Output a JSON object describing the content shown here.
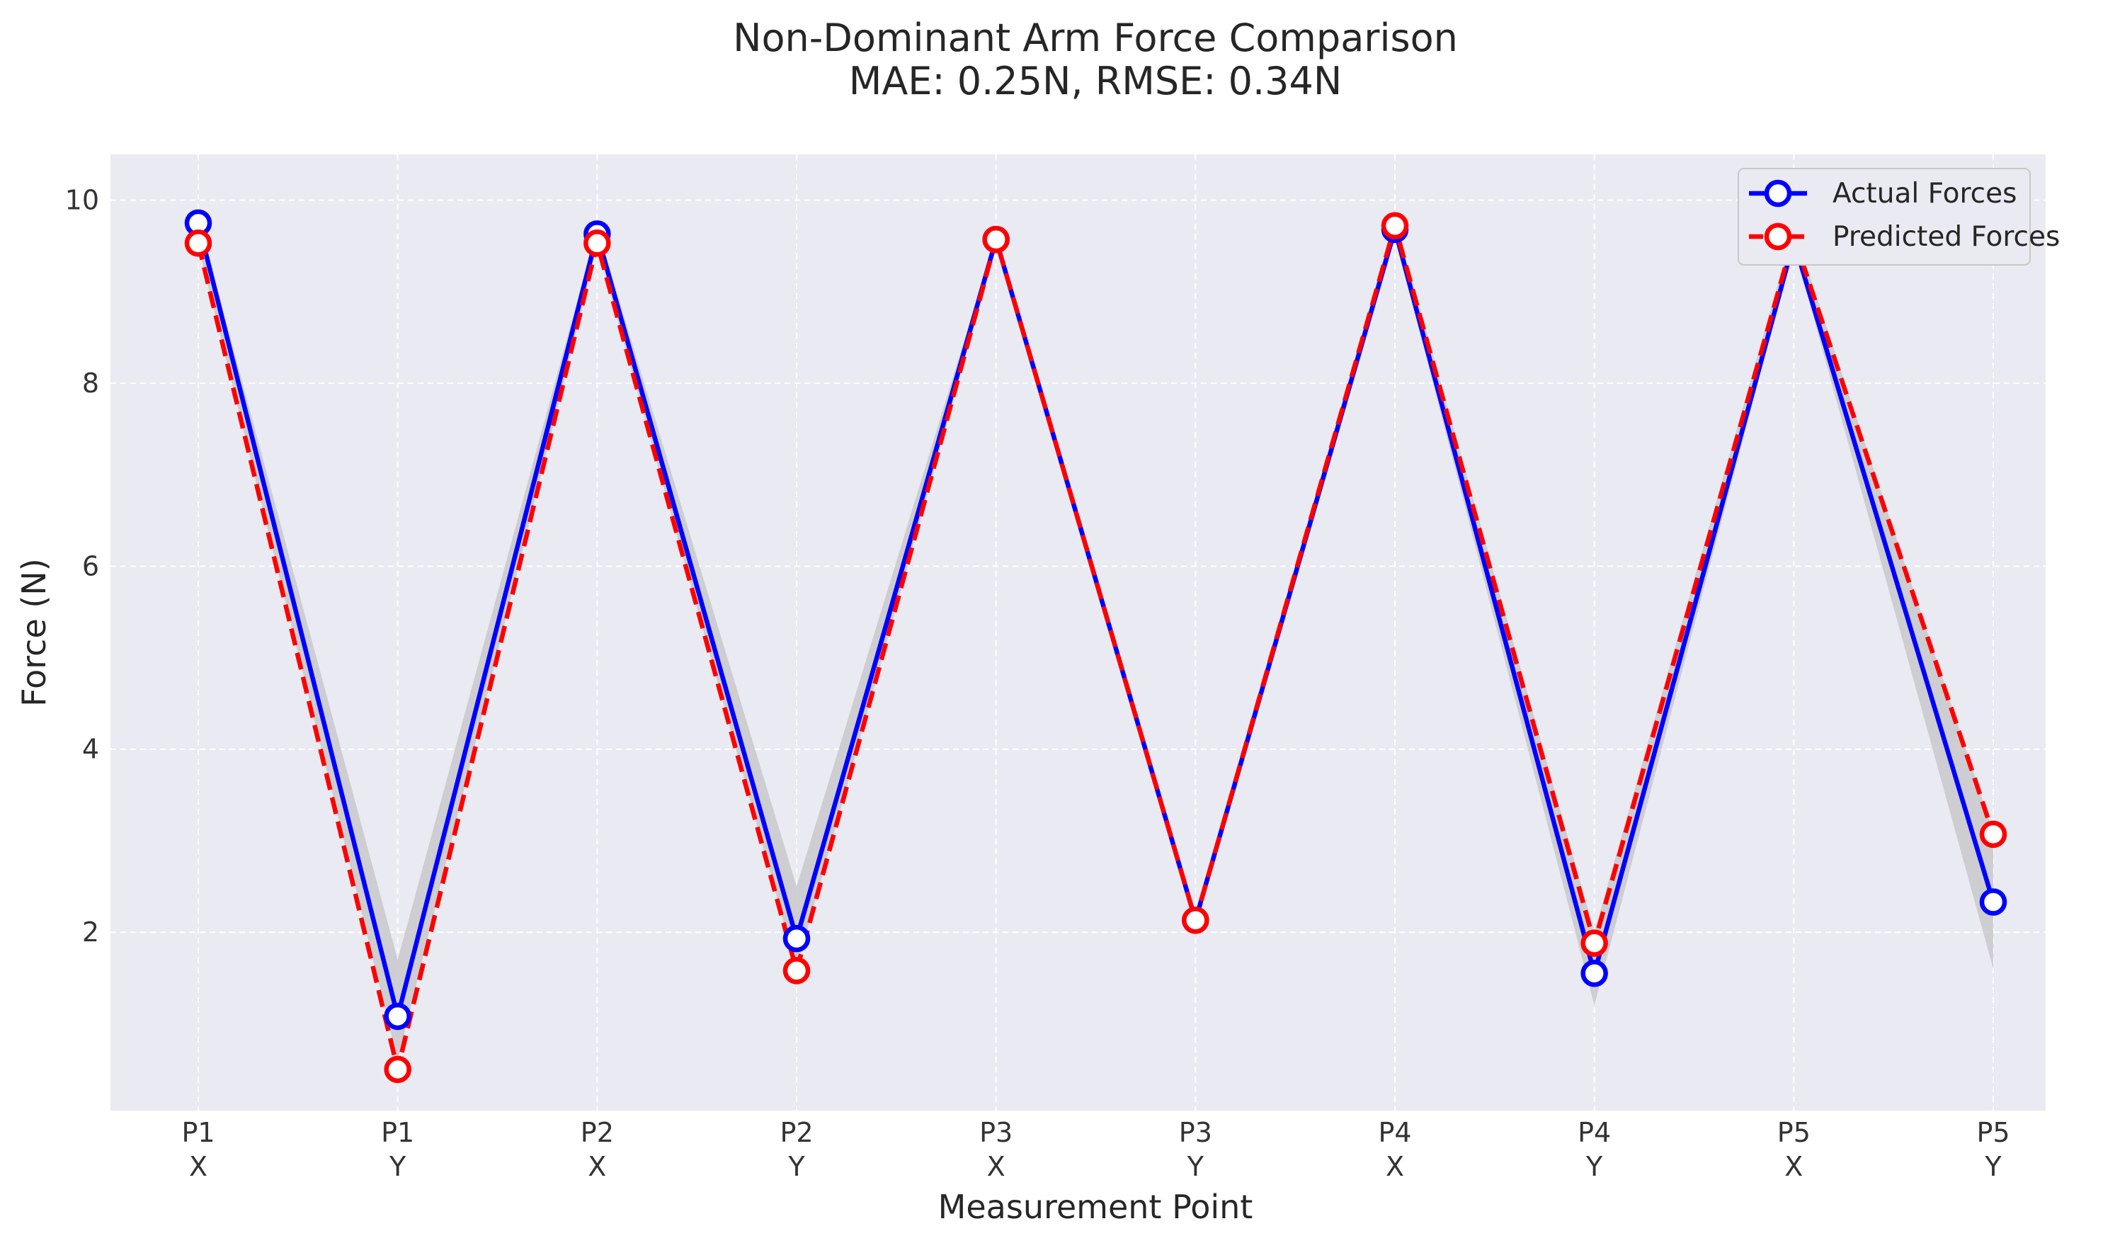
{
  "chart_data": {
    "type": "line",
    "title": "Non-Dominant Arm Force Comparison",
    "subtitle": "MAE: 0.25N, RMSE: 0.34N",
    "xlabel": "Measurement Point",
    "ylabel": "Force (N)",
    "categories": [
      {
        "point": "P1",
        "axis": "X"
      },
      {
        "point": "P1",
        "axis": "Y"
      },
      {
        "point": "P2",
        "axis": "X"
      },
      {
        "point": "P2",
        "axis": "Y"
      },
      {
        "point": "P3",
        "axis": "X"
      },
      {
        "point": "P3",
        "axis": "Y"
      },
      {
        "point": "P4",
        "axis": "X"
      },
      {
        "point": "P4",
        "axis": "Y"
      },
      {
        "point": "P5",
        "axis": "X"
      },
      {
        "point": "P5",
        "axis": "Y"
      }
    ],
    "series": [
      {
        "name": "Actual Forces",
        "color": "#0000ff",
        "style": "solid",
        "values": [
          9.75,
          1.08,
          9.63,
          1.93,
          9.57,
          2.13,
          9.68,
          1.55,
          9.55,
          2.33
        ]
      },
      {
        "name": "Predicted Forces",
        "color": "#ff0000",
        "style": "dashed",
        "values": [
          9.53,
          0.5,
          9.53,
          1.58,
          9.57,
          2.13,
          9.72,
          1.88,
          9.6,
          3.07
        ]
      }
    ],
    "band": {
      "color": "#c8c8cc",
      "lower": [
        9.5,
        0.6,
        9.5,
        1.6,
        9.5,
        2.1,
        9.6,
        1.2,
        9.5,
        1.6
      ],
      "upper": [
        9.8,
        1.7,
        9.7,
        2.5,
        9.6,
        2.2,
        9.8,
        2.0,
        9.7,
        3.1
      ]
    },
    "yticks": [
      2,
      4,
      6,
      8,
      10
    ],
    "ylim": [
      0.05,
      10.5
    ],
    "grid": true,
    "legend_position": "top-right",
    "colors": {
      "plot_background": "#eaeaf2",
      "grid": "#ffffff"
    }
  }
}
